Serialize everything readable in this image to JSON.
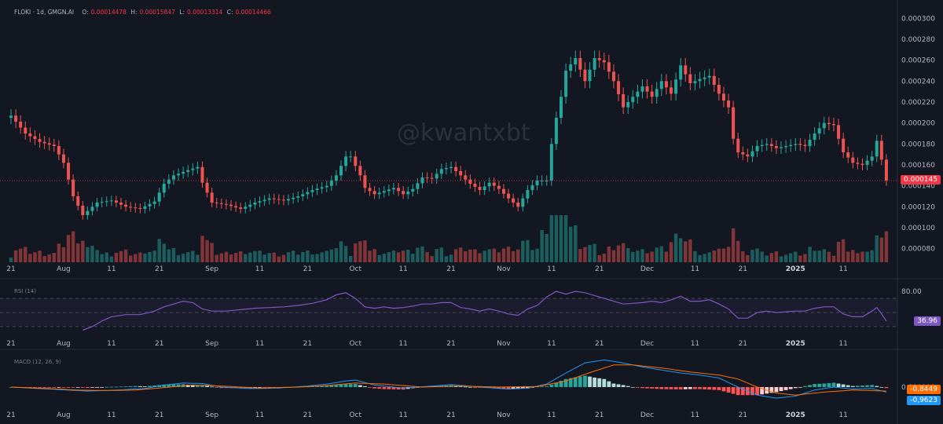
{
  "header": {
    "symbol": "FLOKI · 1d, GMGN.AI",
    "o_label": "O:",
    "o": "0.00014478",
    "h_label": "H:",
    "h": "0.00015847",
    "l_label": "L:",
    "l": "0.00013314",
    "c_label": "C:",
    "c": "0.00014466"
  },
  "watermark": "@kwantxbt",
  "rsi_title": "RSI (14)",
  "macd_title": "MACD (12, 26, 9)",
  "colors": {
    "bg": "#131722",
    "up": "#26a69a",
    "down": "#ef5350",
    "rsi": "#7e57c2",
    "macd": "#2196f3",
    "signal": "#ff6d00",
    "text": "#b2b5be"
  },
  "chart_data": {
    "type": "line",
    "description_series": "FLOKI daily candlestick (close path approximated)",
    "price_axis_ticks": [
      "0.000300",
      "0.000280",
      "0.000260",
      "0.000240",
      "0.000220",
      "0.000200",
      "0.000180",
      "0.000160",
      "0.000140",
      "0.000120",
      "0.000100",
      "0.000080"
    ],
    "price_ylim": [
      7e-05,
      0.00031
    ],
    "last_price": "0.000145",
    "x_ticks": [
      {
        "label": "21",
        "i": 0
      },
      {
        "label": "Aug",
        "i": 11
      },
      {
        "label": "11",
        "i": 21
      },
      {
        "label": "21",
        "i": 31
      },
      {
        "label": "Sep",
        "i": 42
      },
      {
        "label": "11",
        "i": 52
      },
      {
        "label": "21",
        "i": 62
      },
      {
        "label": "Oct",
        "i": 72
      },
      {
        "label": "11",
        "i": 82
      },
      {
        "label": "21",
        "i": 92
      },
      {
        "label": "Nov",
        "i": 103
      },
      {
        "label": "11",
        "i": 113
      },
      {
        "label": "21",
        "i": 123
      },
      {
        "label": "Dec",
        "i": 133
      },
      {
        "label": "11",
        "i": 143
      },
      {
        "label": "21",
        "i": 153
      },
      {
        "label": "2025",
        "i": 164
      },
      {
        "label": "11",
        "i": 174
      }
    ],
    "series": [
      {
        "name": "FLOKI",
        "x_start_label": "21",
        "close_points": [
          [
            0,
            0.000207
          ],
          [
            3,
            0.00019
          ],
          [
            6,
            0.000182
          ],
          [
            9,
            0.000178
          ],
          [
            11,
            0.000162
          ],
          [
            13,
            0.00013
          ],
          [
            15,
            0.000112
          ],
          [
            18,
            0.000124
          ],
          [
            21,
            0.000126
          ],
          [
            24,
            0.00012
          ],
          [
            27,
            0.000118
          ],
          [
            30,
            0.000125
          ],
          [
            32,
            0.000142
          ],
          [
            34,
            0.00015
          ],
          [
            37,
            0.000155
          ],
          [
            39,
            0.000158
          ],
          [
            40,
            0.000143
          ],
          [
            42,
            0.000124
          ],
          [
            45,
            0.000122
          ],
          [
            48,
            0.000118
          ],
          [
            51,
            0.000124
          ],
          [
            54,
            0.000128
          ],
          [
            57,
            0.000126
          ],
          [
            60,
            0.00013
          ],
          [
            63,
            0.000136
          ],
          [
            66,
            0.00014
          ],
          [
            68,
            0.00015
          ],
          [
            70,
            0.000168
          ],
          [
            71,
            0.000168
          ],
          [
            73,
            0.00015
          ],
          [
            74,
            0.000138
          ],
          [
            76,
            0.000132
          ],
          [
            78,
            0.000135
          ],
          [
            80,
            0.000138
          ],
          [
            82,
            0.000132
          ],
          [
            84,
            0.000137
          ],
          [
            86,
            0.000148
          ],
          [
            88,
            0.000147
          ],
          [
            90,
            0.000156
          ],
          [
            92,
            0.000158
          ],
          [
            94,
            0.00015
          ],
          [
            96,
            0.000142
          ],
          [
            98,
            0.000136
          ],
          [
            100,
            0.000143
          ],
          [
            102,
            0.000137
          ],
          [
            104,
            0.000128
          ],
          [
            106,
            0.00012
          ],
          [
            108,
            0.000136
          ],
          [
            110,
            0.000145
          ],
          [
            112,
            0.000145
          ],
          [
            113,
            0.00018
          ],
          [
            114,
            0.000205
          ],
          [
            115,
            0.000225
          ],
          [
            116,
            0.00025
          ],
          [
            118,
            0.000262
          ],
          [
            120,
            0.00024
          ],
          [
            122,
            0.000262
          ],
          [
            124,
            0.000258
          ],
          [
            126,
            0.00024
          ],
          [
            128,
            0.000215
          ],
          [
            130,
            0.000225
          ],
          [
            132,
            0.000235
          ],
          [
            134,
            0.000225
          ],
          [
            136,
            0.00024
          ],
          [
            138,
            0.000228
          ],
          [
            140,
            0.000255
          ],
          [
            142,
            0.000238
          ],
          [
            144,
            0.000242
          ],
          [
            146,
            0.000245
          ],
          [
            148,
            0.000228
          ],
          [
            150,
            0.000215
          ],
          [
            151,
            0.000185
          ],
          [
            152,
            0.000172
          ],
          [
            154,
            0.000168
          ],
          [
            156,
            0.000178
          ],
          [
            158,
            0.00018
          ],
          [
            160,
            0.000176
          ],
          [
            162,
            0.000178
          ],
          [
            164,
            0.00018
          ],
          [
            166,
            0.000178
          ],
          [
            168,
            0.00019
          ],
          [
            170,
            0.0002
          ],
          [
            172,
            0.000198
          ],
          [
            174,
            0.000172
          ],
          [
            176,
            0.000162
          ],
          [
            178,
            0.00016
          ],
          [
            180,
            0.000168
          ],
          [
            181,
            0.000183
          ],
          [
            182,
            0.000165
          ],
          [
            183,
            0.000145
          ]
        ]
      },
      {
        "name": "RSI (14)",
        "ylim": [
          20,
          90
        ],
        "ticks": [
          "80.00"
        ],
        "guides": [
          70,
          50,
          30
        ],
        "last": "36.96",
        "points": [
          [
            15,
            25
          ],
          [
            17,
            30
          ],
          [
            19,
            38
          ],
          [
            21,
            44
          ],
          [
            24,
            47
          ],
          [
            27,
            47
          ],
          [
            30,
            52
          ],
          [
            32,
            58
          ],
          [
            34,
            62
          ],
          [
            36,
            66
          ],
          [
            38,
            64
          ],
          [
            40,
            55
          ],
          [
            42,
            52
          ],
          [
            45,
            52
          ],
          [
            48,
            54
          ],
          [
            51,
            56
          ],
          [
            54,
            57
          ],
          [
            57,
            58
          ],
          [
            60,
            60
          ],
          [
            63,
            63
          ],
          [
            66,
            68
          ],
          [
            68,
            75
          ],
          [
            70,
            78
          ],
          [
            72,
            70
          ],
          [
            74,
            58
          ],
          [
            76,
            56
          ],
          [
            78,
            58
          ],
          [
            80,
            56
          ],
          [
            82,
            57
          ],
          [
            84,
            59
          ],
          [
            86,
            62
          ],
          [
            88,
            62
          ],
          [
            90,
            64
          ],
          [
            92,
            64
          ],
          [
            94,
            57
          ],
          [
            96,
            55
          ],
          [
            98,
            52
          ],
          [
            100,
            55
          ],
          [
            102,
            52
          ],
          [
            104,
            48
          ],
          [
            106,
            46
          ],
          [
            108,
            55
          ],
          [
            110,
            60
          ],
          [
            112,
            72
          ],
          [
            114,
            80
          ],
          [
            116,
            76
          ],
          [
            118,
            80
          ],
          [
            120,
            78
          ],
          [
            122,
            74
          ],
          [
            124,
            70
          ],
          [
            126,
            66
          ],
          [
            128,
            62
          ],
          [
            130,
            63
          ],
          [
            132,
            64
          ],
          [
            134,
            66
          ],
          [
            136,
            64
          ],
          [
            138,
            68
          ],
          [
            140,
            73
          ],
          [
            142,
            66
          ],
          [
            144,
            66
          ],
          [
            146,
            68
          ],
          [
            148,
            62
          ],
          [
            150,
            55
          ],
          [
            152,
            42
          ],
          [
            154,
            42
          ],
          [
            156,
            50
          ],
          [
            158,
            52
          ],
          [
            160,
            50
          ],
          [
            162,
            51
          ],
          [
            164,
            52
          ],
          [
            166,
            52
          ],
          [
            168,
            56
          ],
          [
            170,
            58
          ],
          [
            172,
            58
          ],
          [
            174,
            48
          ],
          [
            176,
            44
          ],
          [
            178,
            44
          ],
          [
            180,
            52
          ],
          [
            181,
            57
          ],
          [
            182,
            48
          ],
          [
            183,
            38
          ]
        ]
      },
      {
        "name": "MACD (12, 26, 9)",
        "ylim": [
          -1.8e-05,
          3.2e-05
        ],
        "tick": "0.000000",
        "last_macd": "-0,9623",
        "last_signal": "-0,8449",
        "macd_points": [
          [
            0,
            0
          ],
          [
            6,
            -1.5e-06
          ],
          [
            12,
            -3e-06
          ],
          [
            16,
            -4e-06
          ],
          [
            22,
            -3e-06
          ],
          [
            28,
            -1.5e-06
          ],
          [
            32,
            2e-06
          ],
          [
            36,
            4e-06
          ],
          [
            40,
            3.5e-06
          ],
          [
            44,
            0
          ],
          [
            50,
            -1.5e-06
          ],
          [
            56,
            -1e-06
          ],
          [
            62,
            1e-06
          ],
          [
            66,
            3e-06
          ],
          [
            70,
            6e-06
          ],
          [
            72,
            7e-06
          ],
          [
            76,
            2e-06
          ],
          [
            82,
            -1e-06
          ],
          [
            88,
            1e-06
          ],
          [
            92,
            2.5e-06
          ],
          [
            98,
            0
          ],
          [
            104,
            -2e-06
          ],
          [
            108,
            -1e-06
          ],
          [
            112,
            3e-06
          ],
          [
            116,
            1.4e-05
          ],
          [
            120,
            2.4e-05
          ],
          [
            124,
            2.7e-05
          ],
          [
            128,
            2.4e-05
          ],
          [
            132,
            2e-05
          ],
          [
            136,
            1.7e-05
          ],
          [
            140,
            1.4e-05
          ],
          [
            144,
            1.2e-05
          ],
          [
            148,
            9e-06
          ],
          [
            152,
            0
          ],
          [
            156,
            -8e-06
          ],
          [
            160,
            -1.1e-05
          ],
          [
            164,
            -9e-06
          ],
          [
            168,
            -3e-06
          ],
          [
            172,
            0
          ],
          [
            176,
            -2e-06
          ],
          [
            180,
            -1.5e-06
          ],
          [
            183,
            -5e-06
          ]
        ],
        "signal_points": [
          [
            0,
            0
          ],
          [
            8,
            -1.5e-06
          ],
          [
            14,
            -3e-06
          ],
          [
            20,
            -3.5e-06
          ],
          [
            26,
            -3e-06
          ],
          [
            32,
            -5e-07
          ],
          [
            38,
            2e-06
          ],
          [
            44,
            1e-06
          ],
          [
            52,
            -1e-06
          ],
          [
            60,
            0
          ],
          [
            66,
            1.5e-06
          ],
          [
            72,
            4e-06
          ],
          [
            78,
            3e-06
          ],
          [
            86,
            0
          ],
          [
            94,
            1e-06
          ],
          [
            102,
            0
          ],
          [
            110,
            5e-07
          ],
          [
            116,
            6e-06
          ],
          [
            122,
            1.6e-05
          ],
          [
            126,
            2.2e-05
          ],
          [
            130,
            2.2e-05
          ],
          [
            136,
            1.9e-05
          ],
          [
            142,
            1.5e-05
          ],
          [
            148,
            1.2e-05
          ],
          [
            152,
            8e-06
          ],
          [
            156,
            0
          ],
          [
            160,
            -6e-06
          ],
          [
            164,
            -8e-06
          ],
          [
            170,
            -5e-06
          ],
          [
            176,
            -3e-06
          ],
          [
            183,
            -4e-06
          ]
        ]
      }
    ]
  }
}
